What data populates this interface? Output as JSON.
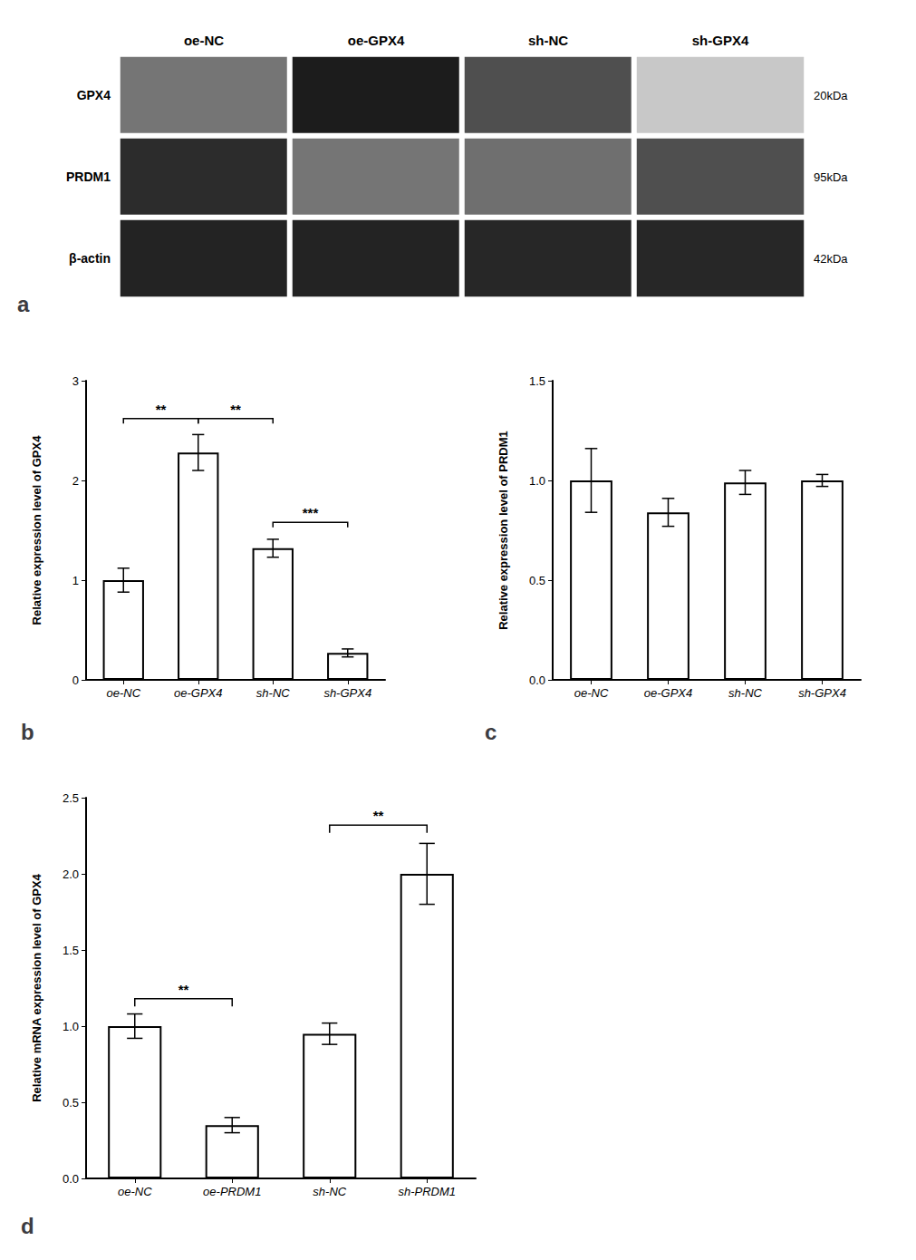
{
  "chart_data": [
    {
      "type": "heatmap",
      "title": "a",
      "categories": [
        "oe-NC",
        "oe-GPX4",
        "sh-NC",
        "sh-GPX4"
      ],
      "series": [
        {
          "name": "GPX4",
          "values": [
            0.55,
            0.95,
            0.72,
            0.18
          ]
        },
        {
          "name": "PRDM1",
          "values": [
            0.88,
            0.55,
            0.58,
            0.72
          ]
        },
        {
          "name": "β-actin",
          "values": [
            0.92,
            0.92,
            0.9,
            0.9
          ]
        }
      ],
      "annotations": [
        {
          "y": "GPX4",
          "text": "20kDa"
        },
        {
          "y": "PRDM1",
          "text": "95kDa"
        },
        {
          "y": "β-actin",
          "text": "42kDa"
        }
      ],
      "zlim": [
        0,
        1
      ]
    },
    {
      "type": "bar",
      "title": "b",
      "categories": [
        "oe-NC",
        "oe-GPX4",
        "sh-NC",
        "sh-GPX4"
      ],
      "values": [
        1.0,
        2.28,
        1.32,
        0.27
      ],
      "errors": [
        0.12,
        0.18,
        0.09,
        0.04
      ],
      "ylabel": "Relative expression level of GPX4",
      "ylim": [
        0,
        3
      ],
      "yticks": [
        0,
        1,
        2,
        3
      ],
      "color": "white",
      "grid": false,
      "annotations": [
        {
          "x1": "oe-NC",
          "x2": "oe-GPX4",
          "y": 2.62,
          "text": "**"
        },
        {
          "x1": "oe-GPX4",
          "x2": "sh-NC",
          "y": 2.62,
          "text": "**"
        },
        {
          "x1": "sh-NC",
          "x2": "sh-GPX4",
          "y": 1.58,
          "text": "***"
        }
      ]
    },
    {
      "type": "bar",
      "title": "c",
      "categories": [
        "oe-NC",
        "oe-GPX4",
        "sh-NC",
        "sh-GPX4"
      ],
      "values": [
        1.0,
        0.84,
        0.99,
        1.0
      ],
      "errors": [
        0.16,
        0.07,
        0.06,
        0.03
      ],
      "ylabel": "Relative expression level of PRDM1",
      "ylim": [
        0,
        1.5
      ],
      "yticks": [
        {
          "value": 0,
          "label": "0.0"
        },
        0.5,
        {
          "value": 1,
          "label": "1.0"
        },
        1.5
      ],
      "color": "white",
      "grid": false
    },
    {
      "type": "bar",
      "title": "d",
      "categories": [
        "oe-NC",
        "oe-PRDM1",
        "sh-NC",
        "sh-PRDM1"
      ],
      "values": [
        1.0,
        0.35,
        0.95,
        2.0
      ],
      "errors": [
        0.08,
        0.05,
        0.07,
        0.2
      ],
      "ylabel": "Relative mRNA expression level of GPX4",
      "ylim": [
        0,
        2.5
      ],
      "yticks": [
        {
          "value": 0,
          "label": "0.0"
        },
        0.5,
        {
          "value": 1,
          "label": "1.0"
        },
        1.5,
        {
          "value": 2,
          "label": "2.0"
        },
        2.5
      ],
      "color": "white",
      "grid": false,
      "annotations": [
        {
          "x1": "oe-NC",
          "x2": "oe-PRDM1",
          "y": 1.18,
          "text": "**"
        },
        {
          "x1": "sh-NC",
          "x2": "sh-PRDM1",
          "y": 2.32,
          "text": "**"
        }
      ]
    }
  ]
}
